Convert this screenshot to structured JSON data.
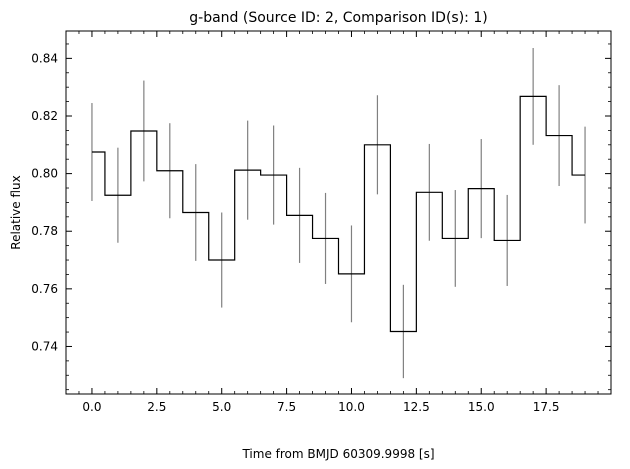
{
  "chart_data": {
    "type": "step",
    "title": "g-band (Source ID: 2, Comparison ID(s): 1)",
    "xlabel": "Time from BMJD 60309.9998 [s]",
    "ylabel": "Relative flux",
    "xlim": [
      -1.0,
      20.0
    ],
    "ylim": [
      0.7235,
      0.8495
    ],
    "xticks": [
      0.0,
      2.5,
      5.0,
      7.5,
      10.0,
      12.5,
      15.0,
      17.5
    ],
    "xtick_labels": [
      "0.0",
      "2.5",
      "5.0",
      "7.5",
      "10.0",
      "12.5",
      "15.0",
      "17.5"
    ],
    "yticks": [
      0.74,
      0.76,
      0.78,
      0.8,
      0.82,
      0.84
    ],
    "ytick_labels": [
      "0.74",
      "0.76",
      "0.78",
      "0.80",
      "0.82",
      "0.84"
    ],
    "grid": false,
    "line_color": "#000000",
    "errorbar_color": "#808080",
    "series": [
      {
        "x": [
          0,
          1,
          2,
          3,
          4,
          5,
          6,
          7,
          8,
          9,
          10,
          11,
          12,
          13,
          14,
          15,
          16,
          17,
          18,
          19
        ],
        "values": [
          0.8075,
          0.7925,
          0.8148,
          0.801,
          0.7865,
          0.77,
          0.8012,
          0.7995,
          0.7855,
          0.7775,
          0.7652,
          0.81,
          0.7452,
          0.7935,
          0.7775,
          0.7948,
          0.7768,
          0.8268,
          0.8132,
          0.7995
        ],
        "errors": [
          0.017,
          0.0165,
          0.0175,
          0.0165,
          0.0168,
          0.0165,
          0.0172,
          0.0172,
          0.0165,
          0.0158,
          0.0168,
          0.0172,
          0.0162,
          0.0168,
          0.0168,
          0.0172,
          0.0158,
          0.0168,
          0.0175,
          0.0168
        ]
      }
    ]
  }
}
